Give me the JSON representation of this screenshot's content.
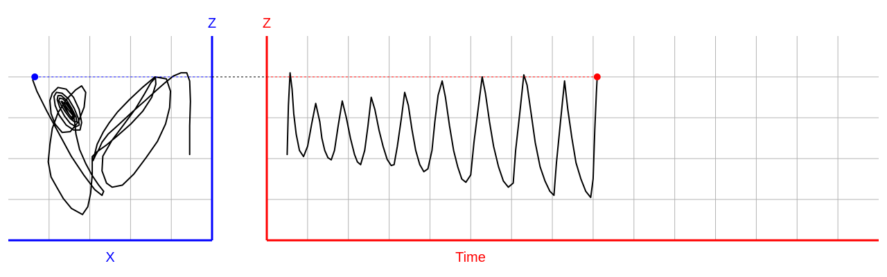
{
  "colors": {
    "background": "#ffffff",
    "grid": "#b3b3b3",
    "trace": "#000000",
    "phase_axes": "#0000ff",
    "time_axes": "#ff0000",
    "connector": "#000000"
  },
  "chart_data": [
    {
      "type": "line",
      "title": "",
      "xlabel": "X",
      "ylabel": "Z",
      "grid": true,
      "grid_columns": 5,
      "grid_rows": 5,
      "xlim": [
        0,
        5
      ],
      "ylim": [
        0,
        5
      ],
      "current_point": {
        "x": 0.65,
        "y": 4.0
      },
      "series": [
        {
          "x": [
            4.45,
            4.45,
            4.47,
            4.45,
            4.38,
            4.24,
            4.05,
            3.85,
            3.62,
            3.36,
            3.02,
            2.72,
            2.45,
            2.3,
            2.22,
            2.14,
            2.08,
            2.18,
            2.33,
            2.48,
            2.68,
            2.97,
            3.29,
            3.6,
            3.88,
            3.98,
            3.96,
            3.86,
            3.66,
            3.38,
            3.08,
            2.8,
            2.55,
            2.41,
            2.3,
            2.32,
            2.54,
            2.84,
            3.12,
            3.34,
            3.5,
            3.61,
            3.62,
            3.52,
            3.3,
            3.0,
            2.68,
            2.42,
            2.18,
            2.06,
            2.06,
            2.02,
            1.95,
            1.82,
            1.55,
            1.35,
            1.2,
            1.05,
            0.98,
            1.02,
            1.08,
            1.22,
            1.42,
            1.65,
            1.8,
            1.9,
            1.86,
            1.72,
            1.52,
            1.32,
            1.15,
            1.05,
            1.02,
            1.08,
            1.22,
            1.42,
            1.6,
            1.74,
            1.8,
            1.76,
            1.6,
            1.42,
            1.25,
            1.15,
            1.12,
            1.18,
            1.32,
            1.48,
            1.62,
            1.72,
            1.74,
            1.66,
            1.52,
            1.38,
            1.26,
            1.2,
            1.22,
            1.3,
            1.44,
            1.56,
            1.66,
            1.68,
            1.62,
            1.52,
            1.4,
            1.3,
            1.24,
            1.26,
            1.34,
            1.46,
            1.56,
            1.62,
            1.6,
            1.52,
            1.42,
            1.34,
            1.3,
            1.32,
            1.4,
            1.5,
            1.58,
            1.58,
            1.48,
            1.4,
            1.38,
            1.42,
            1.52,
            1.62,
            1.66,
            1.75,
            1.9,
            2.05,
            2.22,
            2.34,
            2.3,
            2.12,
            1.85,
            1.55,
            1.25,
            0.95,
            0.7,
            0.6,
            0.62,
            0.65
          ],
          "y": [
            2.1,
            2.8,
            3.4,
            3.9,
            4.1,
            4.1,
            4.02,
            3.86,
            3.66,
            3.42,
            3.12,
            2.84,
            2.6,
            2.4,
            2.22,
            2.08,
            1.95,
            2.35,
            2.65,
            2.88,
            3.14,
            3.44,
            3.74,
            4.0,
            3.95,
            3.65,
            3.25,
            2.85,
            2.42,
            2.02,
            1.62,
            1.35,
            1.3,
            1.4,
            1.7,
            2.06,
            2.44,
            2.84,
            3.22,
            3.58,
            3.86,
            3.98,
            3.82,
            3.5,
            3.16,
            2.84,
            2.56,
            2.34,
            2.17,
            2.05,
            1.6,
            1.15,
            0.82,
            0.63,
            0.78,
            1.02,
            1.28,
            1.55,
            1.92,
            2.34,
            2.74,
            3.12,
            3.44,
            3.68,
            3.78,
            3.62,
            3.26,
            2.9,
            2.66,
            2.64,
            2.84,
            3.1,
            3.42,
            3.6,
            3.74,
            3.7,
            3.5,
            3.2,
            2.88,
            2.7,
            2.7,
            2.82,
            3.06,
            3.3,
            3.52,
            3.62,
            3.6,
            3.46,
            3.22,
            2.98,
            2.82,
            2.78,
            2.86,
            3.04,
            3.26,
            3.44,
            3.54,
            3.54,
            3.42,
            3.22,
            3.02,
            2.9,
            2.9,
            2.98,
            3.14,
            3.3,
            3.42,
            3.48,
            3.46,
            3.34,
            3.16,
            3.02,
            2.98,
            3.04,
            3.18,
            3.32,
            3.4,
            3.4,
            3.3,
            3.16,
            3.06,
            2.96,
            3.1,
            3.26,
            3.36,
            3.34,
            3.2,
            2.96,
            2.6,
            2.22,
            1.88,
            1.6,
            1.35,
            1.2,
            1.1,
            1.24,
            1.6,
            2.05,
            2.6,
            3.15,
            3.65,
            3.92,
            4.0,
            4.0
          ]
        }
      ]
    },
    {
      "type": "line",
      "title": "",
      "xlabel": "Time",
      "ylabel": "Z",
      "grid": true,
      "grid_columns": 15,
      "grid_rows": 5,
      "xlim": [
        0,
        15
      ],
      "ylim": [
        0,
        5
      ],
      "current_point": {
        "x": 8.1,
        "y": 4.0
      },
      "series": [
        {
          "x": [
            0.5,
            0.53,
            0.57,
            0.62,
            0.66,
            0.72,
            0.8,
            0.9,
            1.0,
            1.1,
            1.2,
            1.3,
            1.35,
            1.42,
            1.5,
            1.58,
            1.66,
            1.75,
            1.85,
            1.95,
            2.05,
            2.15,
            2.22,
            2.3,
            2.4,
            2.48,
            2.56,
            2.65,
            2.75,
            2.85,
            2.95,
            3.05,
            3.12,
            3.2,
            3.3,
            3.38,
            3.47,
            3.56,
            3.65,
            3.75,
            3.85,
            3.95,
            4.05,
            4.12,
            4.2,
            4.3,
            4.38,
            4.48,
            4.58,
            4.68,
            4.78,
            4.88,
            5.0,
            5.08,
            5.18,
            5.28,
            5.36,
            5.46,
            5.56,
            5.68,
            5.8,
            5.92,
            6.04,
            6.1,
            6.2,
            6.3,
            6.38,
            6.48,
            6.58,
            6.7,
            6.82,
            6.94,
            7.04,
            7.1,
            7.2,
            7.3,
            7.38,
            7.48,
            7.58,
            7.7,
            7.82,
            7.94,
            8.0,
            8.04,
            8.08,
            8.1
          ],
          "y": [
            2.1,
            3.3,
            4.1,
            3.7,
            3.1,
            2.6,
            2.2,
            2.05,
            2.3,
            2.85,
            3.35,
            2.9,
            2.5,
            2.2,
            2.02,
            1.97,
            2.2,
            2.8,
            3.41,
            3.0,
            2.5,
            2.1,
            1.92,
            1.85,
            2.2,
            2.8,
            3.5,
            3.2,
            2.7,
            2.3,
            1.98,
            1.83,
            1.85,
            2.3,
            3.0,
            3.62,
            3.3,
            2.7,
            2.2,
            1.85,
            1.68,
            1.75,
            2.2,
            2.9,
            3.55,
            3.9,
            3.5,
            2.8,
            2.2,
            1.8,
            1.5,
            1.42,
            1.6,
            2.4,
            3.2,
            4.0,
            3.6,
            2.9,
            2.3,
            1.8,
            1.45,
            1.3,
            1.4,
            2.2,
            3.1,
            4.05,
            3.8,
            3.1,
            2.4,
            1.8,
            1.45,
            1.2,
            1.1,
            1.9,
            2.9,
            3.9,
            3.2,
            2.5,
            1.9,
            1.5,
            1.2,
            1.05,
            1.5,
            2.7,
            3.6,
            4.0
          ]
        }
      ]
    }
  ],
  "labels": {
    "phase_z": "Z",
    "phase_x": "X",
    "time_z": "Z",
    "time_x": "Time"
  }
}
